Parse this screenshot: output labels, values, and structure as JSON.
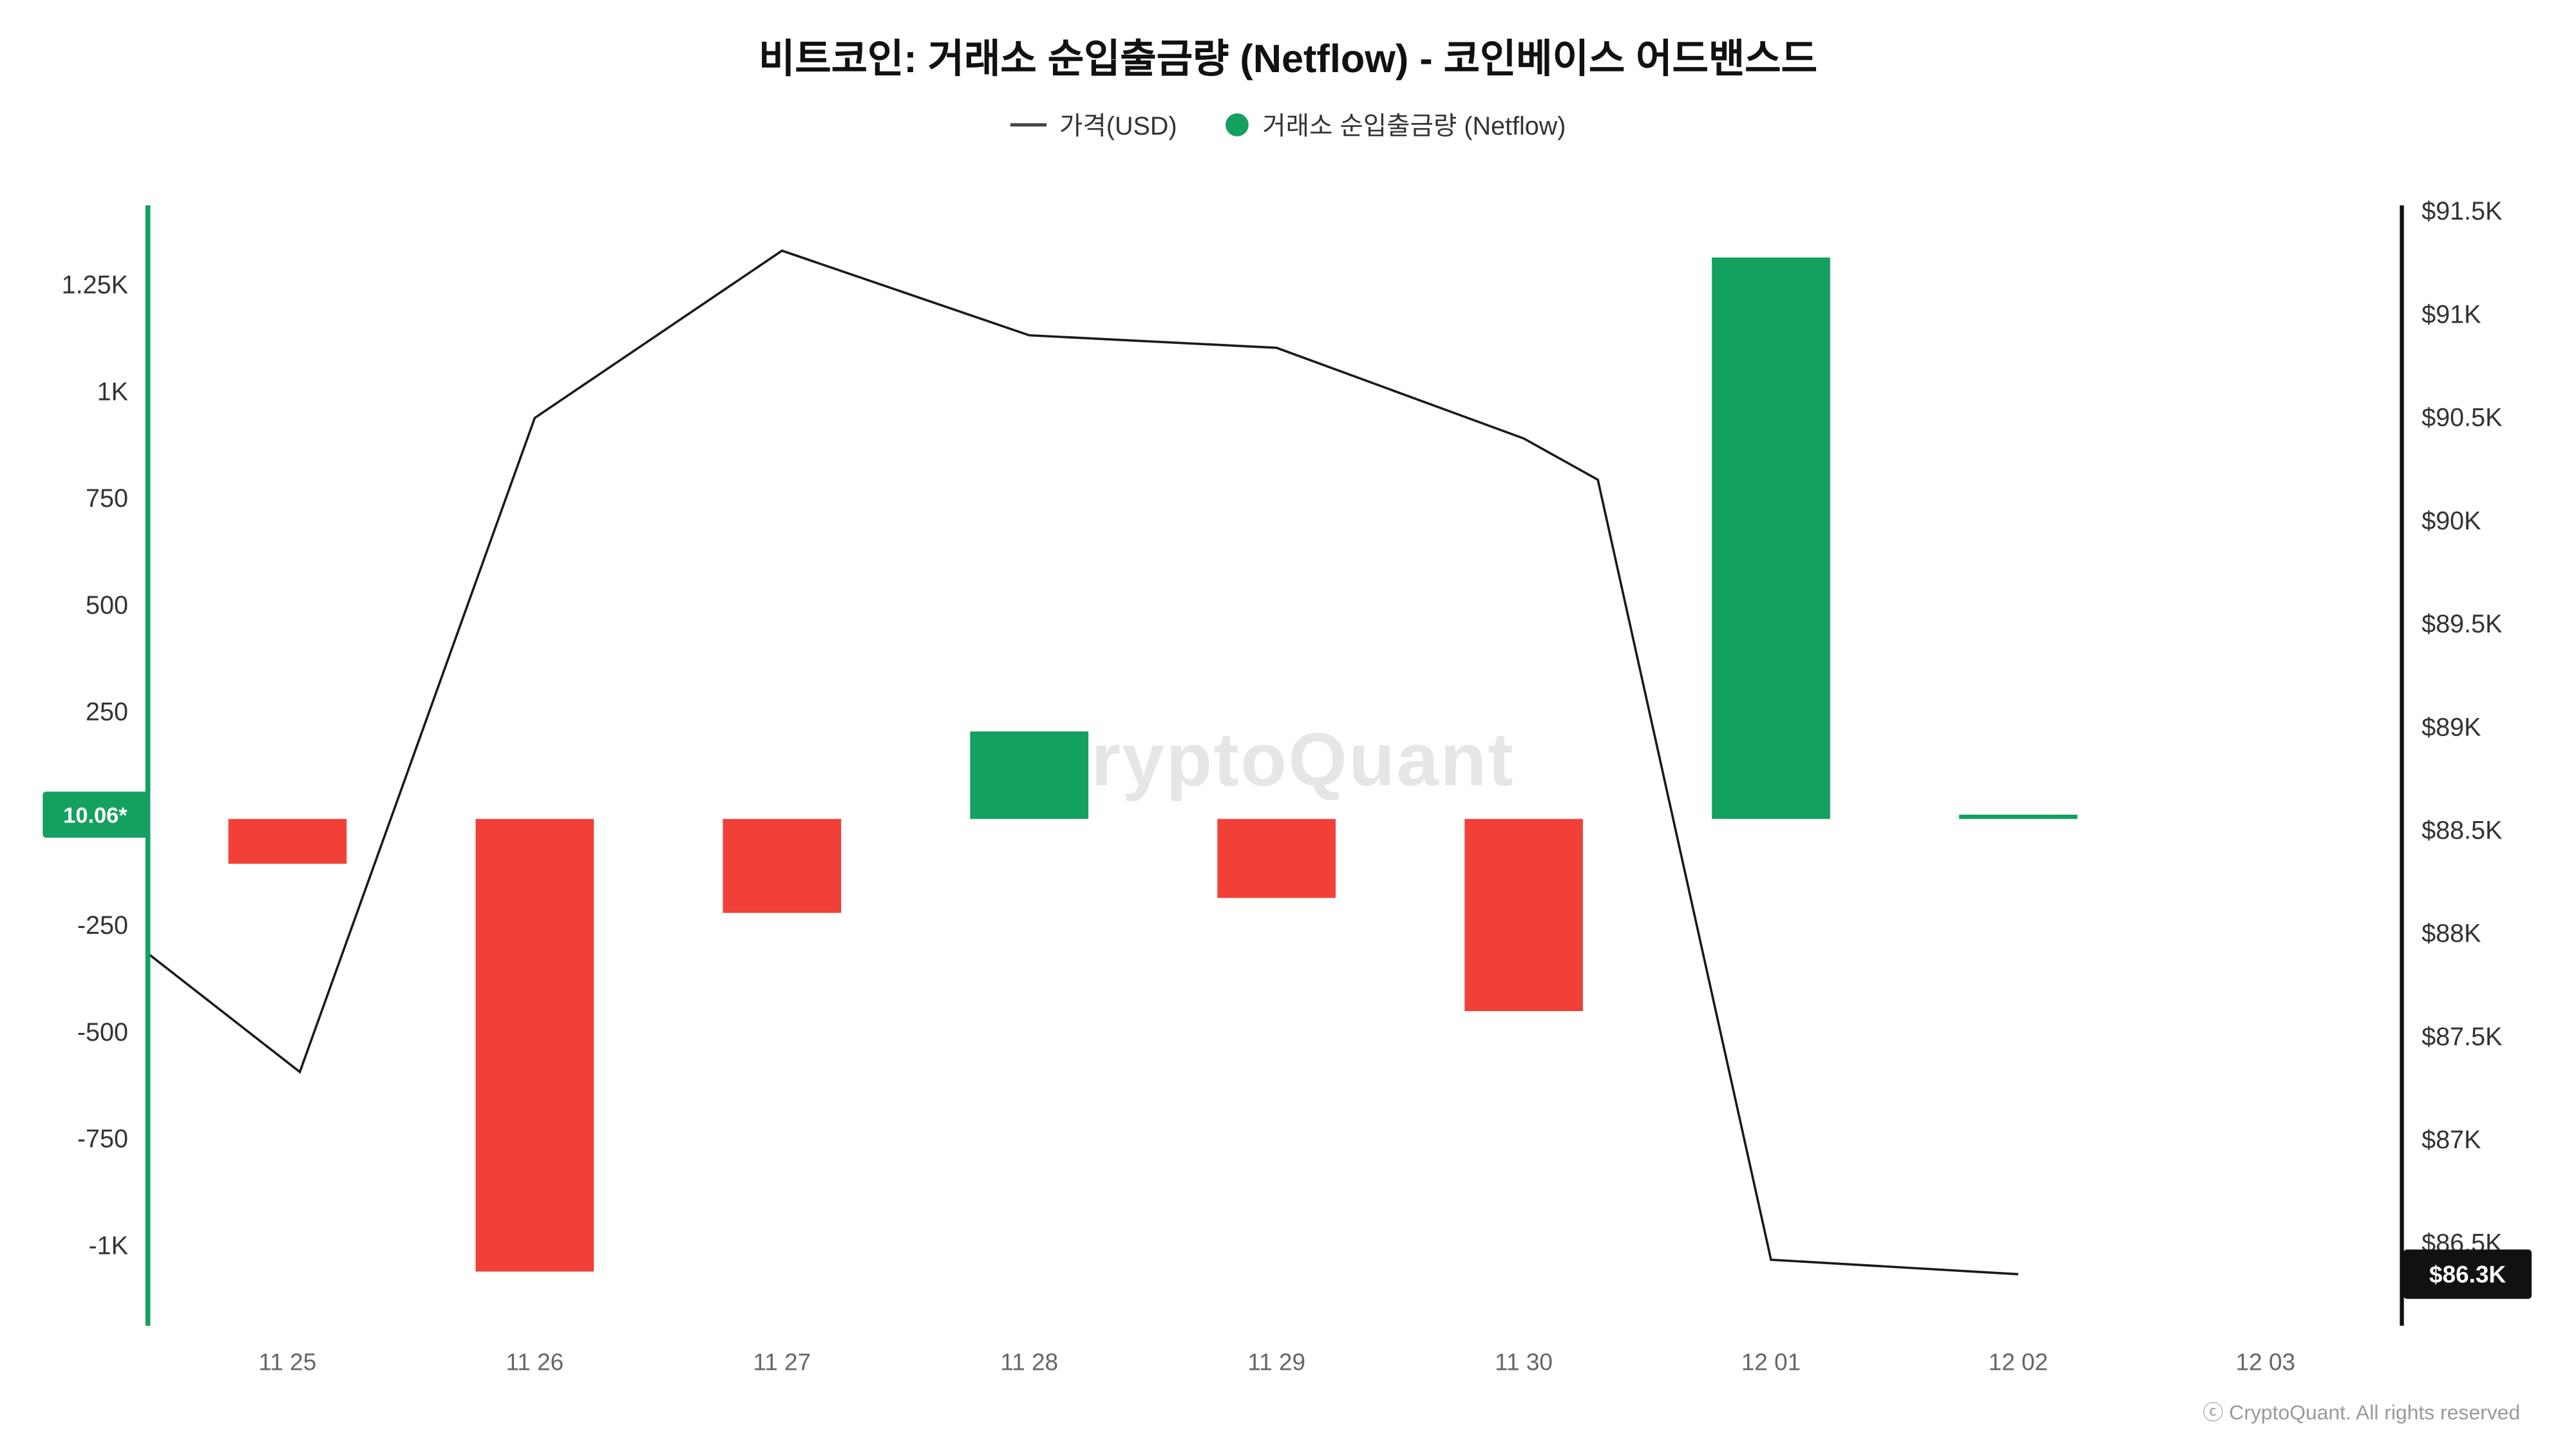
{
  "title": "비트코인: 거래소 순입출금량 (Netflow) - 코인베이스 어드밴스드",
  "legend": {
    "price": "가격(USD)",
    "netflow": "거래소 순입출금량 (Netflow)"
  },
  "watermark": "CryptoQuant",
  "copyright": "ⓒ CryptoQuant. All rights reserved",
  "colors": {
    "green": "#14A05F",
    "red": "#F14038",
    "line": "#1A1A1A",
    "left_axis_line": "#14A05F",
    "right_axis_line": "#111111",
    "tick_text": "#333333",
    "x_tick_text": "#666666",
    "watermark_text": "#E6E6E6",
    "badge_left_bg": "#14A05F",
    "badge_right_bg": "#111111"
  },
  "current": {
    "netflow_value": 10.06,
    "netflow_label": "10.06*",
    "price_value": 86350,
    "price_label": "$86.3K"
  },
  "chart_data": {
    "type": "bar+line",
    "categories": [
      "11 25",
      "11 26",
      "11 27",
      "11 28",
      "11 29",
      "11 30",
      "12 01",
      "12 02",
      "12 03"
    ],
    "series": [
      {
        "name": "거래소 순입출금량 (Netflow)",
        "type": "bar",
        "axis": "left",
        "values": [
          -105,
          -1060,
          -220,
          205,
          -185,
          -450,
          1315,
          10.06,
          null
        ]
      },
      {
        "name": "가격(USD)",
        "type": "line",
        "axis": "right",
        "points": [
          [
            -0.56,
            87900
          ],
          [
            0.05,
            87330
          ],
          [
            1,
            90500
          ],
          [
            2,
            91310
          ],
          [
            3,
            90900
          ],
          [
            4,
            90840
          ],
          [
            5,
            90400
          ],
          [
            5.3,
            90200
          ],
          [
            6,
            86420
          ],
          [
            7,
            86350
          ]
        ]
      }
    ],
    "left_axis": {
      "domain": [
        -1187,
        1437
      ],
      "tick_values": [
        1250,
        1000,
        750,
        500,
        250,
        -250,
        -500,
        -750,
        -1000
      ],
      "tick_labels": [
        "1.25K",
        "1K",
        "750",
        "500",
        "250",
        "-250",
        "-500",
        "-750",
        "-1K"
      ]
    },
    "right_axis": {
      "domain": [
        86100,
        91530
      ],
      "tick_values": [
        91500,
        91000,
        90500,
        90000,
        89500,
        89000,
        88500,
        88000,
        87500,
        87000,
        86500
      ],
      "tick_labels": [
        "$91.5K",
        "$91K",
        "$90.5K",
        "$90K",
        "$89.5K",
        "$89K",
        "$88.5K",
        "$88K",
        "$87.5K",
        "$87K",
        "$86.5K"
      ]
    },
    "legend_position": "top",
    "grid": false
  }
}
